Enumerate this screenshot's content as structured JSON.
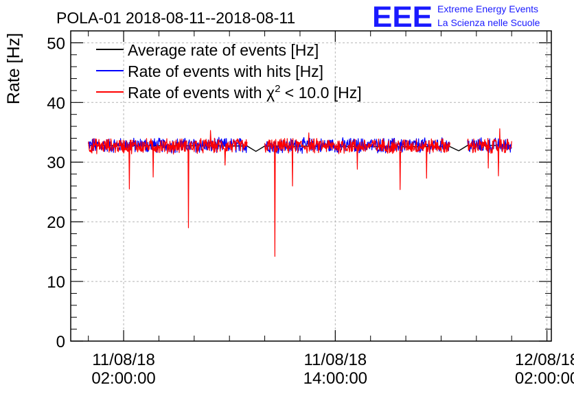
{
  "header": {
    "title": "POLA-01 2018-08-11--2018-08-11",
    "logo_text": "EEE",
    "logo_line1": "Extreme Energy Events",
    "logo_line2": "La Scienza nelle Scuole"
  },
  "colors": {
    "average": "#000000",
    "hits": "#0000ff",
    "chi2": "#ff0000",
    "logo": "#1a1aff",
    "grid": "#b4b4b4"
  },
  "chart_data": {
    "type": "line",
    "title": "POLA-01 2018-08-11--2018-08-11",
    "ylabel": "Rate [Hz]",
    "xlabel": "",
    "ylim": [
      0,
      52
    ],
    "xlim": [
      "2018-08-10 23:00:00",
      "2018-08-12 02:15:00"
    ],
    "x_ticks": [
      {
        "time": "2018-08-11 02:00:00",
        "date": "11/08/18",
        "clock": "02:00:00"
      },
      {
        "time": "2018-08-11 14:00:00",
        "date": "11/08/18",
        "clock": "14:00:00"
      },
      {
        "time": "2018-08-12 02:00:00",
        "date": "12/08/18",
        "clock": "02:00:00"
      }
    ],
    "y_ticks": [
      0,
      10,
      20,
      30,
      40,
      50
    ],
    "grid": true,
    "legend_position": "top-left",
    "legend": [
      {
        "key": "average",
        "label_pre": "Average rate of events [Hz]",
        "sup": "",
        "label_post": ""
      },
      {
        "key": "hits",
        "label_pre": "Rate of events with hits [Hz]",
        "sup": "",
        "label_post": ""
      },
      {
        "key": "chi2",
        "label_pre": "Rate of events with χ",
        "sup": "2",
        "label_post": " < 10.0 [Hz]"
      }
    ],
    "series": [
      {
        "name": "Average rate of events [Hz]",
        "key": "average",
        "points": [
          [
            "2018-08-11 00:00:00",
            32.8
          ],
          [
            "2018-08-11 09:00:00",
            32.7
          ],
          [
            "2018-08-11 09:30:00",
            31.8
          ],
          [
            "2018-08-11 10:00:00",
            32.7
          ],
          [
            "2018-08-11 18:00:00",
            32.6
          ],
          [
            "2018-08-11 20:30:00",
            32.6
          ],
          [
            "2018-08-11 21:00:00",
            31.9
          ],
          [
            "2018-08-11 21:30:00",
            32.8
          ],
          [
            "2018-08-12 00:00:00",
            32.8
          ]
        ]
      },
      {
        "name": "Rate of events with hits [Hz]",
        "key": "hits",
        "baseline": 32.8,
        "noise": 1.1,
        "segments": [
          [
            "2018-08-11 00:00:00",
            "2018-08-11 09:00:00"
          ],
          [
            "2018-08-11 10:00:00",
            "2018-08-11 20:30:00"
          ],
          [
            "2018-08-11 21:30:00",
            "2018-08-12 00:00:00"
          ]
        ]
      },
      {
        "name": "Rate of events with χ2 < 10.0 [Hz]",
        "key": "chi2",
        "baseline": 32.7,
        "noise": 1.1,
        "segments": [
          [
            "2018-08-11 00:00:00",
            "2018-08-11 09:00:00"
          ],
          [
            "2018-08-11 10:00:00",
            "2018-08-11 20:30:00"
          ],
          [
            "2018-08-11 21:30:00",
            "2018-08-12 00:00:00"
          ]
        ],
        "dips": [
          [
            "2018-08-11 02:20:00",
            25.5
          ],
          [
            "2018-08-11 03:40:00",
            27.5
          ],
          [
            "2018-08-11 05:40:00",
            19.0
          ],
          [
            "2018-08-11 07:45:00",
            29.5
          ],
          [
            "2018-08-11 10:35:00",
            14.2
          ],
          [
            "2018-08-11 11:35:00",
            26.0
          ],
          [
            "2018-08-11 15:15:00",
            28.8
          ],
          [
            "2018-08-11 17:40:00",
            25.4
          ],
          [
            "2018-08-11 19:10:00",
            27.3
          ],
          [
            "2018-08-11 22:40:00",
            29.0
          ],
          [
            "2018-08-11 23:15:00",
            27.7
          ]
        ],
        "spikes": [
          [
            "2018-08-11 06:55:00",
            35.3
          ],
          [
            "2018-08-11 12:30:00",
            34.9
          ],
          [
            "2018-08-11 23:20:00",
            35.6
          ]
        ]
      }
    ]
  }
}
